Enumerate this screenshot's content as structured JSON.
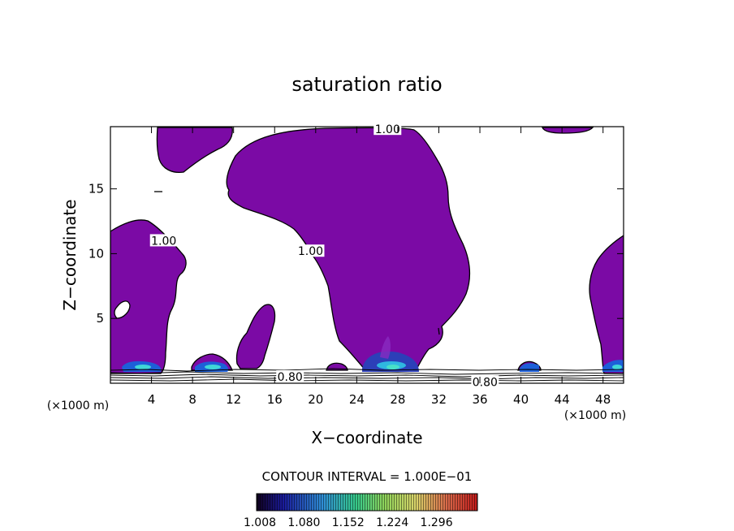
{
  "chart_data": {
    "type": "heatmap",
    "title": "saturation ratio",
    "xlabel": "X−coordinate",
    "ylabel": "Z−coordinate",
    "x_unit": "(×1000 m)",
    "y_unit": "(×1000 m)",
    "xlim": [
      0,
      50
    ],
    "ylim": [
      0,
      19.8
    ],
    "xticks": [
      4,
      8,
      12,
      16,
      20,
      24,
      28,
      32,
      36,
      40,
      44,
      48
    ],
    "yticks": [
      5,
      10,
      15
    ],
    "contour_interval": "CONTOUR INTERVAL = 1.000E−01",
    "contour_labels": [
      {
        "text": "1.00",
        "x": 27.0,
        "y": 19.6
      },
      {
        "text": "1.00",
        "x": 5.2,
        "y": 11.0
      },
      {
        "text": "1.00",
        "x": 19.5,
        "y": 10.2
      },
      {
        "text": "0.80",
        "x": 17.5,
        "y": 0.5
      },
      {
        "text": "0.80",
        "x": 36.5,
        "y": 0.1
      }
    ],
    "colorbar": {
      "labels": [
        "1.008",
        "1.080",
        "1.152",
        "1.224",
        "1.296"
      ],
      "min": 1.008,
      "max": 1.296
    },
    "fill_color": "#7b0aa5"
  }
}
